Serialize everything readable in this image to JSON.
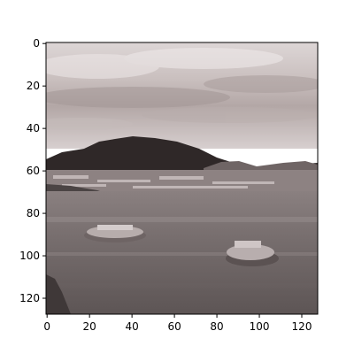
{
  "figure": {
    "image_description": "Grayscale-tinted photo of a lake with a dark mountain ridge under a cloudy sky, a town along the far shore and two small rocky islets in the water",
    "colors": {
      "sky_light": "#e6dedd",
      "cloud_mid": "#b6a9a8",
      "mountain": "#2f2828",
      "town": "#9c9090",
      "water": "#7f7676",
      "water_dark": "#4a4343",
      "island": "#b8aeae",
      "axis": "#000000"
    }
  },
  "chart_data": {
    "type": "image",
    "x_ticks": [
      "0",
      "20",
      "40",
      "60",
      "80",
      "100",
      "120"
    ],
    "y_ticks": [
      "0",
      "20",
      "40",
      "60",
      "80",
      "100",
      "120"
    ],
    "xlim": [
      -0.5,
      127.5
    ],
    "ylim": [
      127.5,
      -0.5
    ],
    "image_size": [
      128,
      128
    ],
    "grid": false
  }
}
